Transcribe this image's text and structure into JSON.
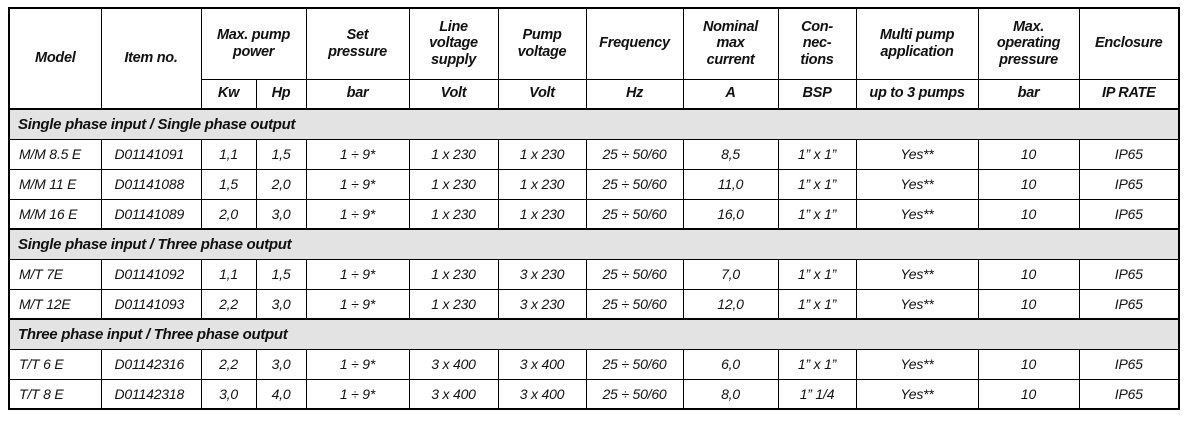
{
  "colors": {
    "section_band_bg": "#e3e3e3",
    "grid_line": "#000000",
    "text": "#111111",
    "page_bg": "#ffffff"
  },
  "table": {
    "column_keys": [
      "model",
      "item-no",
      "kw",
      "hp",
      "set-pressure",
      "line-voltage-supply",
      "pump-voltage",
      "frequency",
      "nominal-max-current",
      "connections",
      "multi-pump-application",
      "max-operating-pressure",
      "enclosure"
    ],
    "header": {
      "groups": [
        {
          "key": "model",
          "label": "Model",
          "colspan": 1,
          "rowspan": 2
        },
        {
          "key": "item-no",
          "label": "Item no.",
          "colspan": 1,
          "rowspan": 2
        },
        {
          "key": "max-pump-power",
          "label": "Max. pump\npower",
          "colspan": 2,
          "rowspan": 1
        },
        {
          "key": "set-pressure",
          "label": "Set\npressure",
          "colspan": 1,
          "rowspan": 1
        },
        {
          "key": "line-voltage-supply",
          "label": "Line\nvoltage\nsupply",
          "colspan": 1,
          "rowspan": 1
        },
        {
          "key": "pump-voltage",
          "label": "Pump\nvoltage",
          "colspan": 1,
          "rowspan": 1
        },
        {
          "key": "frequency",
          "label": "Frequency",
          "colspan": 1,
          "rowspan": 1
        },
        {
          "key": "nominal-max-current",
          "label": "Nominal\nmax\ncurrent",
          "colspan": 1,
          "rowspan": 1
        },
        {
          "key": "connections",
          "label": "Con-\nnec-\ntions",
          "colspan": 1,
          "rowspan": 1
        },
        {
          "key": "multi-pump-application",
          "label": "Multi pump\napplication",
          "colspan": 1,
          "rowspan": 1
        },
        {
          "key": "max-operating-pressure",
          "label": "Max.\noperating\npressure",
          "colspan": 1,
          "rowspan": 1
        },
        {
          "key": "enclosure",
          "label": "Enclosure",
          "colspan": 1,
          "rowspan": 1
        }
      ],
      "units": [
        "Kw",
        "Hp",
        "bar",
        "Volt",
        "Volt",
        "Hz",
        "A",
        "BSP",
        "up to 3 pumps",
        "bar",
        "IP RATE"
      ]
    },
    "sections": [
      {
        "title": "Single phase input / Single phase output",
        "rows": [
          [
            "M/M 8.5 E",
            "D01141091",
            "1,1",
            "1,5",
            "1 ÷ 9*",
            "1 x 230",
            "1 x 230",
            "25 ÷ 50/60",
            "8,5",
            "1” x 1”",
            "Yes**",
            "10",
            "IP65"
          ],
          [
            "M/M 11 E",
            "D01141088",
            "1,5",
            "2,0",
            "1 ÷ 9*",
            "1 x 230",
            "1 x 230",
            "25 ÷ 50/60",
            "11,0",
            "1” x 1”",
            "Yes**",
            "10",
            "IP65"
          ],
          [
            "M/M 16 E",
            "D01141089",
            "2,0",
            "3,0",
            "1 ÷ 9*",
            "1 x 230",
            "1 x 230",
            "25 ÷ 50/60",
            "16,0",
            "1” x 1”",
            "Yes**",
            "10",
            "IP65"
          ]
        ]
      },
      {
        "title": "Single phase input / Three phase output",
        "rows": [
          [
            "M/T 7E",
            "D01141092",
            "1,1",
            "1,5",
            "1 ÷ 9*",
            "1 x 230",
            "3 x 230",
            "25 ÷ 50/60",
            "7,0",
            "1” x 1”",
            "Yes**",
            "10",
            "IP65"
          ],
          [
            "M/T 12E",
            "D01141093",
            "2,2",
            "3,0",
            "1 ÷ 9*",
            "1 x 230",
            "3 x 230",
            "25 ÷ 50/60",
            "12,0",
            "1” x 1”",
            "Yes**",
            "10",
            "IP65"
          ]
        ]
      },
      {
        "title": "Three phase input / Three phase output",
        "rows": [
          [
            "T/T 6 E",
            "D01142316",
            "2,2",
            "3,0",
            "1 ÷ 9*",
            "3 x 400",
            "3 x 400",
            "25 ÷ 50/60",
            "6,0",
            "1” x 1”",
            "Yes**",
            "10",
            "IP65"
          ],
          [
            "T/T 8 E",
            "D01142318",
            "3,0",
            "4,0",
            "1 ÷ 9*",
            "3 x 400",
            "3 x 400",
            "25 ÷ 50/60",
            "8,0",
            "1” 1/4",
            "Yes**",
            "10",
            "IP65"
          ]
        ]
      }
    ]
  }
}
